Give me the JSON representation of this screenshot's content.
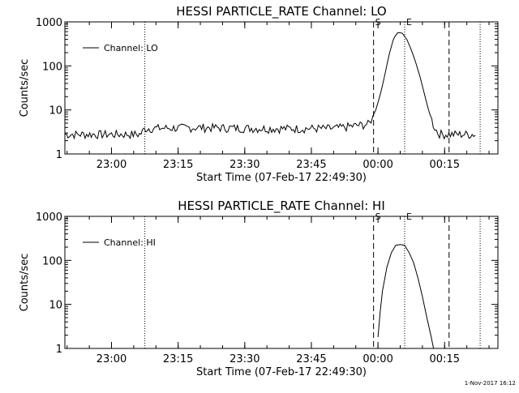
{
  "footer_date": "1-Nov-2017 16:12",
  "chart_data": [
    {
      "type": "line",
      "title": "HESSI PARTICLE_RATE Channel: LO",
      "xlabel": "Start Time (07-Feb-17 22:49:30)",
      "ylabel": "Counts/sec",
      "yscale": "log",
      "xlim": [
        "22:49:30",
        "00:27:00"
      ],
      "ylim": [
        1,
        1000
      ],
      "xticks": [
        "23:00",
        "23:15",
        "23:30",
        "23:45",
        "00:00",
        "00:15"
      ],
      "yticks": [
        "1",
        "10",
        "100",
        "1000"
      ],
      "legend": {
        "position": "top-left",
        "entries": [
          "Channel: LO"
        ]
      },
      "markers": [
        {
          "label": "S",
          "time": "23:59:00",
          "style": "dashed"
        },
        {
          "label": "E",
          "time": "00:06:00",
          "style": "dotted"
        },
        {
          "label": "",
          "time": "23:07:30",
          "style": "dotted"
        },
        {
          "label": "",
          "time": "00:16:00",
          "style": "dashed"
        },
        {
          "label": "",
          "time": "00:23:00",
          "style": "dotted"
        }
      ],
      "series": [
        {
          "name": "Channel: LO",
          "x": [
            "22:49:30",
            "23:06:30",
            "23:07:30",
            "23:20:00",
            "23:35:00",
            "23:50:00",
            "23:58:00",
            "23:59:30",
            "00:00:30",
            "00:01:30",
            "00:02:30",
            "00:03:30",
            "00:04:30",
            "00:05:30",
            "00:06:30",
            "00:07:30",
            "00:08:30",
            "00:09:30",
            "00:10:30",
            "00:11:30",
            "00:12:30",
            "00:13:30",
            "00:14:30",
            "00:15:00",
            "00:15:30",
            "00:22:00"
          ],
          "y": [
            2.8,
            2.8,
            3.8,
            4.0,
            3.8,
            3.8,
            4.8,
            10,
            22,
            60,
            180,
            420,
            580,
            550,
            400,
            230,
            120,
            55,
            22,
            9,
            4.5,
            3.0,
            2.8,
            2.8,
            2.8,
            2.8
          ],
          "noise": [
            [
              0.5,
              1.0
            ],
            [
              1.0,
              1.0
            ],
            [
              1.0,
              1.0
            ],
            [
              1.0,
              1.0
            ],
            [
              1.0,
              1.0
            ],
            [
              1.0,
              1.0
            ],
            [
              1.0,
              1.0
            ],
            [
              1.0,
              1.0
            ],
            [
              1.0,
              1.0
            ],
            [
              1.0,
              1.0
            ],
            [
              1.0,
              1.0
            ],
            [
              1.0,
              1.0
            ],
            [
              1.0,
              1.0
            ],
            [
              1.0,
              1.0
            ],
            [
              1.0,
              1.0
            ],
            [
              1.0,
              1.0
            ],
            [
              1.0,
              1.0
            ],
            [
              1.0,
              1.0
            ],
            [
              1.0,
              1.0
            ],
            [
              1.0,
              1.0
            ],
            [
              1.0,
              1.0
            ],
            [
              1.0,
              1.0
            ],
            [
              1.0,
              1.0
            ],
            [
              1.0,
              1.0
            ],
            [
              1.0,
              1.0
            ],
            [
              1.0,
              1.0
            ]
          ]
        }
      ]
    },
    {
      "type": "line",
      "title": "HESSI PARTICLE_RATE Channel: HI",
      "xlabel": "Start Time (07-Feb-17 22:49:30)",
      "ylabel": "Counts/sec",
      "yscale": "log",
      "xlim": [
        "22:49:30",
        "00:27:00"
      ],
      "ylim": [
        1,
        1000
      ],
      "xticks": [
        "23:00",
        "23:15",
        "23:30",
        "23:45",
        "00:00",
        "00:15"
      ],
      "yticks": [
        "1",
        "10",
        "100",
        "1000"
      ],
      "legend": {
        "position": "top-left",
        "entries": [
          "Channel: HI"
        ]
      },
      "markers": [
        {
          "label": "S",
          "time": "23:59:00",
          "style": "dashed"
        },
        {
          "label": "E",
          "time": "00:06:00",
          "style": "dotted"
        },
        {
          "label": "",
          "time": "23:07:30",
          "style": "dotted"
        },
        {
          "label": "",
          "time": "00:16:00",
          "style": "dashed"
        },
        {
          "label": "",
          "time": "00:23:00",
          "style": "dotted"
        }
      ],
      "series": [
        {
          "name": "Channel: HI",
          "x": [
            "00:00:00",
            "00:00:30",
            "00:01:00",
            "00:02:00",
            "00:03:00",
            "00:04:00",
            "00:05:00",
            "00:06:00",
            "00:07:00",
            "00:08:00",
            "00:09:00",
            "00:10:00",
            "00:11:00",
            "00:12:00",
            "00:12:30"
          ],
          "y": [
            1.8,
            7,
            20,
            70,
            150,
            220,
            230,
            220,
            150,
            90,
            40,
            15,
            5,
            1.8,
            1.0
          ]
        }
      ]
    }
  ]
}
